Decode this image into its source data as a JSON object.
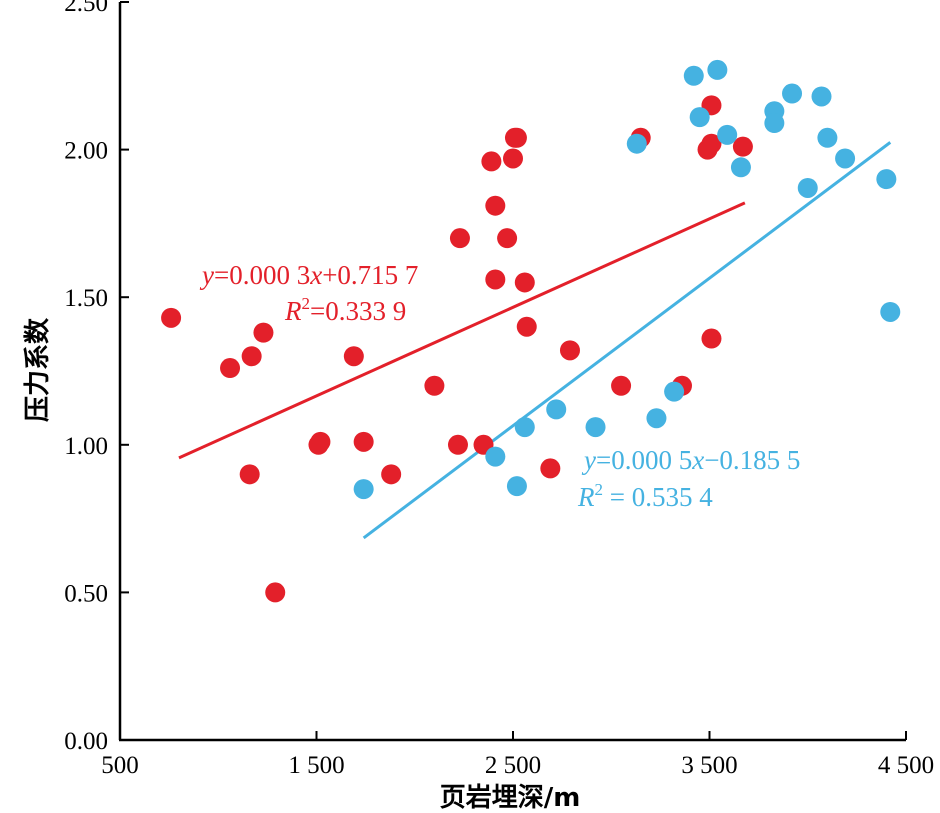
{
  "chart_data": {
    "type": "scatter",
    "xlabel": "页岩埋深/m",
    "ylabel": "压力系数",
    "xlim": [
      500,
      4500
    ],
    "ylim": [
      0,
      2.5
    ],
    "x_ticks": [
      500,
      1500,
      2500,
      3500,
      4500
    ],
    "x_tick_labels": [
      "500",
      "1 500",
      "2 500",
      "3 500",
      "4 500"
    ],
    "y_ticks": [
      0,
      0.5,
      1,
      1.5,
      2,
      2.5
    ],
    "y_tick_labels": [
      "0.00",
      "0.50",
      "1.00",
      "1.50",
      "2.00",
      "2.50"
    ],
    "grid": false,
    "legend": "none",
    "series": [
      {
        "color": "#e3202a",
        "points": [
          [
            760,
            1.43
          ],
          [
            1060,
            1.26
          ],
          [
            1170,
            1.3
          ],
          [
            1230,
            1.38
          ],
          [
            1160,
            0.9
          ],
          [
            1290,
            0.5
          ],
          [
            1510,
            1.0
          ],
          [
            1520,
            1.01
          ],
          [
            1690,
            1.3
          ],
          [
            1740,
            1.01
          ],
          [
            1880,
            0.9
          ],
          [
            2100,
            1.2
          ],
          [
            2230,
            1.7
          ],
          [
            2220,
            1.0
          ],
          [
            2350,
            1.0
          ],
          [
            2390,
            1.96
          ],
          [
            2410,
            1.81
          ],
          [
            2410,
            1.56
          ],
          [
            2470,
            1.7
          ],
          [
            2500,
            1.97
          ],
          [
            2510,
            2.04
          ],
          [
            2520,
            2.04
          ],
          [
            2560,
            1.55
          ],
          [
            2570,
            1.4
          ],
          [
            2690,
            0.92
          ],
          [
            2790,
            1.32
          ],
          [
            3050,
            1.2
          ],
          [
            3150,
            2.04
          ],
          [
            3360,
            1.2
          ],
          [
            3490,
            2.0
          ],
          [
            3510,
            2.02
          ],
          [
            3510,
            2.15
          ],
          [
            3510,
            1.36
          ],
          [
            3670,
            2.01
          ]
        ],
        "trend": {
          "equation": "y=0.000 3x+0.715 7",
          "r2": "R2=0.333 9",
          "x_start": 800,
          "x_end": 3680
        }
      },
      {
        "color": "#45b2e1",
        "points": [
          [
            1740,
            0.85
          ],
          [
            2410,
            0.96
          ],
          [
            2520,
            0.86
          ],
          [
            2560,
            1.06
          ],
          [
            2720,
            1.12
          ],
          [
            2920,
            1.06
          ],
          [
            3130,
            2.02
          ],
          [
            3230,
            1.09
          ],
          [
            3320,
            1.18
          ],
          [
            3420,
            2.25
          ],
          [
            3450,
            2.11
          ],
          [
            3540,
            2.27
          ],
          [
            3590,
            2.05
          ],
          [
            3660,
            1.94
          ],
          [
            3830,
            2.13
          ],
          [
            3830,
            2.09
          ],
          [
            3920,
            2.19
          ],
          [
            4000,
            1.87
          ],
          [
            4070,
            2.18
          ],
          [
            4100,
            2.04
          ],
          [
            4190,
            1.97
          ],
          [
            4400,
            1.9
          ],
          [
            4420,
            1.45
          ]
        ],
        "trend": {
          "equation": "y=0.000 5x−0.185 5",
          "r2": "R2 = 0.535 4",
          "x_start": 1740,
          "x_end": 4420
        }
      }
    ]
  },
  "annotations": {
    "red_equation": {
      "lead": "y",
      "mid": "=0.000 3",
      "var": "x",
      "tail": "+0.715 7"
    },
    "red_r2": {
      "lead": "R",
      "sup": "2",
      "tail": "=0.333 9"
    },
    "blue_equation": {
      "lead": "y",
      "mid": "=0.000 5",
      "var": "x",
      "tail": "−0.185 5"
    },
    "blue_r2": {
      "lead": "R",
      "sup": "2",
      "tail": " = 0.535 4"
    }
  }
}
